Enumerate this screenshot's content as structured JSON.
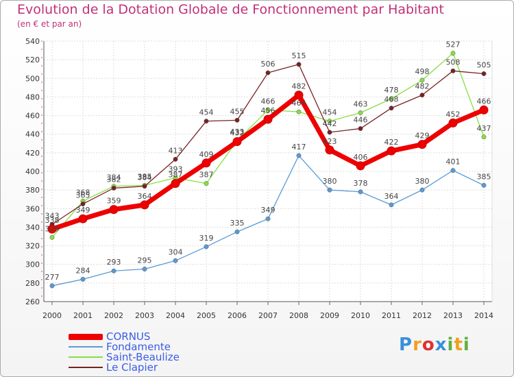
{
  "title": "Evolution de la Dotation Globale de Fonctionnement par Habitant",
  "subtitle": "(en € et par an)",
  "logo": {
    "text": "Proxiti",
    "letters": [
      "P",
      "r",
      "o",
      "x",
      "i",
      "t",
      "i"
    ],
    "colors": [
      "#3a8fd9",
      "#f0a020",
      "#e03030",
      "#3a8fd9",
      "#60b040",
      "#f0a020",
      "#60b040"
    ]
  },
  "chart_data": {
    "type": "line",
    "title": "Evolution de la Dotation Globale de Fonctionnement par Habitant",
    "subtitle": "(en € et par an)",
    "xlabel": "",
    "ylabel": "",
    "x": [
      "2000",
      "2001",
      "2002",
      "2003",
      "2004",
      "2005",
      "2006",
      "2007",
      "2008",
      "2009",
      "2010",
      "2011",
      "2012",
      "2013",
      "2014"
    ],
    "ylim": [
      260,
      540
    ],
    "yticks": [
      260,
      280,
      300,
      320,
      340,
      360,
      380,
      400,
      420,
      440,
      460,
      480,
      500,
      520,
      540
    ],
    "grid": true,
    "legend_position": "bottom-left",
    "series": [
      {
        "name": "CORNUS",
        "color": "#ee0000",
        "values": [
          338,
          349,
          359,
          364,
          387,
          409,
          432,
          456,
          482,
          423,
          406,
          422,
          429,
          452,
          466
        ],
        "labels": [
          "338",
          "349",
          "359",
          "364",
          "387",
          "409",
          "432",
          "456",
          "482",
          "423",
          "406",
          "422",
          "429",
          "452",
          "466"
        ]
      },
      {
        "name": "Fondamente",
        "color": "#5a9ad6",
        "values": [
          277,
          284,
          293,
          295,
          304,
          319,
          335,
          349,
          417,
          380,
          378,
          364,
          380,
          401,
          385
        ],
        "labels": [
          "277",
          "284",
          "293",
          "295",
          "304",
          "319",
          "335",
          "349",
          "417",
          "380",
          "378",
          "364",
          "380",
          "401",
          "385"
        ]
      },
      {
        "name": "Saint-Beaulize",
        "color": "#88dd44",
        "values": [
          329,
          368,
          384,
          385,
          393,
          387,
          433,
          466,
          464,
          454,
          463,
          478,
          498,
          527,
          437
        ],
        "labels": [
          "329",
          "368",
          "384",
          "385",
          "393",
          "387",
          "433",
          "466",
          "464",
          "454",
          "463",
          "478",
          "498",
          "527",
          "437"
        ]
      },
      {
        "name": "Le Clapier",
        "color": "#772222",
        "values": [
          343,
          365,
          382,
          384,
          413,
          454,
          455,
          506,
          515,
          442,
          446,
          468,
          482,
          508,
          505
        ],
        "labels": [
          "343",
          "365",
          "382",
          "384",
          "413",
          "454",
          "455",
          "506",
          "515",
          "442",
          "446",
          "468",
          "482",
          "508",
          "505"
        ]
      }
    ]
  }
}
